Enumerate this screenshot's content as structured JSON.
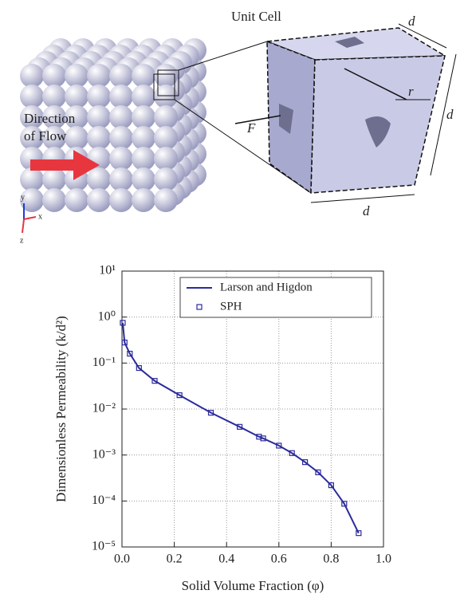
{
  "illustration": {
    "unit_cell": "Unit Cell",
    "d_top": "d",
    "d_right": "d",
    "d_bottom": "d",
    "r": "r",
    "F": "F",
    "flow_line1": "Direction",
    "flow_line2": "of Flow",
    "axis_y": "y",
    "axis_x": "x",
    "axis_z": "z"
  },
  "chart_data": {
    "type": "line",
    "xlabel": "Solid Volume Fraction (φ)",
    "ylabel": "Dimensionless Permeability (k/d²)",
    "xlim": [
      0,
      1
    ],
    "ylim": [
      1e-05,
      10
    ],
    "log_y": true,
    "grid": true,
    "legend": "upper center",
    "xticks": [
      {
        "value": 0,
        "label": "0.0"
      },
      0.2,
      0.4,
      0.6,
      0.8,
      {
        "value": 1,
        "label": "1.0"
      }
    ],
    "yticks": [
      {
        "value": 10,
        "label": "10¹"
      },
      {
        "value": 1,
        "label": "10⁰"
      },
      {
        "value": 0.1,
        "label": "10⁻¹"
      },
      {
        "value": 0.01,
        "label": "10⁻²"
      },
      {
        "value": 0.001,
        "label": "10⁻³"
      },
      {
        "value": 0.0001,
        "label": "10⁻⁴"
      },
      {
        "value": 1e-05,
        "label": "10⁻⁵"
      }
    ],
    "series": [
      {
        "name": "Larson and Higdon",
        "color": "#2b2b9c",
        "style": "line",
        "x": [
          0.003,
          0.01,
          0.03,
          0.065,
          0.125,
          0.22,
          0.34,
          0.45,
          0.524,
          0.54,
          0.6,
          0.65,
          0.7,
          0.75,
          0.8,
          0.85,
          0.905
        ],
        "values": [
          0.75,
          0.28,
          0.16,
          0.078,
          0.041,
          0.02,
          0.0083,
          0.0041,
          0.0025,
          0.0023,
          0.0016,
          0.0011,
          0.0007,
          0.00042,
          0.00022,
          8.7e-05,
          2e-05
        ]
      },
      {
        "name": "SPH",
        "color": "#2b2b9c",
        "style": "marker",
        "x": [
          0.003,
          0.01,
          0.03,
          0.065,
          0.125,
          0.22,
          0.34,
          0.45,
          0.524,
          0.54,
          0.6,
          0.65,
          0.7,
          0.75,
          0.8,
          0.85,
          0.905
        ],
        "values": [
          0.75,
          0.28,
          0.16,
          0.078,
          0.041,
          0.02,
          0.0083,
          0.0041,
          0.0025,
          0.0023,
          0.0016,
          0.0011,
          0.0007,
          0.00042,
          0.00022,
          8.7e-05,
          2e-05
        ]
      }
    ]
  }
}
